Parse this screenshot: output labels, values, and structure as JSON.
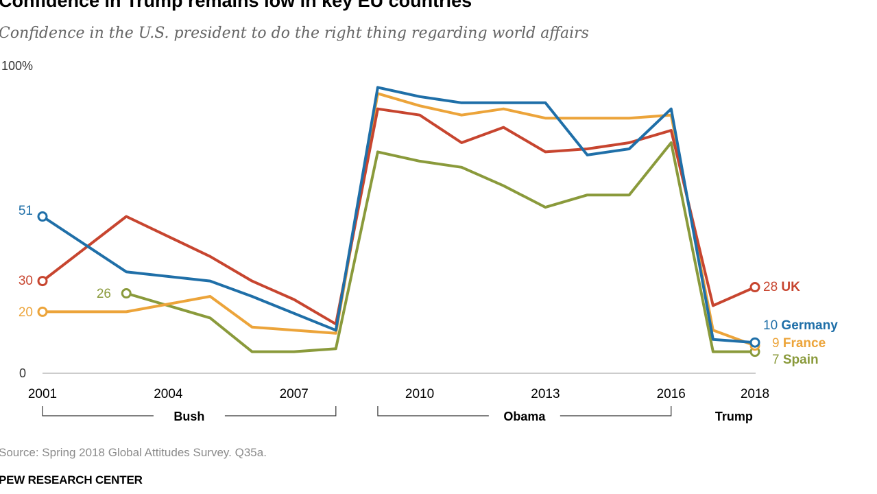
{
  "title": "Confidence in Trump remains low in key EU countries",
  "subtitle": "Confidence in the U.S. president to do the right thing regarding world affairs",
  "source": "Source: Spring 2018 Global Attitudes Survey. Q35a.",
  "org": "PEW RESEARCH CENTER",
  "chart_data": {
    "type": "line",
    "title": "Confidence in Trump remains low in key EU countries",
    "subtitle": "Confidence in the U.S. president to do the right thing regarding world affairs",
    "xlabel": "",
    "ylabel": "",
    "xlim": [
      2001,
      2018
    ],
    "ylim": [
      0,
      100
    ],
    "grid": false,
    "legend": "direct labels at line ends",
    "x_ticks": [
      "2001",
      "2004",
      "2007",
      "2010",
      "2013",
      "2016",
      "2018"
    ],
    "y_ticks": [
      {
        "value": 100,
        "label": "100%"
      },
      {
        "value": 0,
        "label": "0"
      }
    ],
    "eras": [
      {
        "label": "Bush",
        "start": 2001,
        "end": 2008
      },
      {
        "label": "Obama",
        "start": 2009,
        "end": 2016
      },
      {
        "label": "Trump",
        "start": 2017,
        "end": 2018
      }
    ],
    "series": [
      {
        "name": "Spain",
        "color": "#8a9a3b",
        "points": [
          [
            2003,
            26
          ],
          [
            2005,
            18
          ],
          [
            2006,
            7
          ],
          [
            2007,
            7
          ],
          [
            2008,
            8
          ],
          [
            2009,
            72
          ],
          [
            2010,
            69
          ],
          [
            2011,
            67
          ],
          [
            2012,
            61
          ],
          [
            2013,
            54
          ],
          [
            2014,
            58
          ],
          [
            2015,
            58
          ],
          [
            2016,
            75
          ],
          [
            2017,
            7
          ],
          [
            2018,
            7
          ]
        ],
        "start_label": "26",
        "end_label": "7"
      },
      {
        "name": "France",
        "color": "#eca43a",
        "points": [
          [
            2001,
            20
          ],
          [
            2003,
            20
          ],
          [
            2005,
            25
          ],
          [
            2006,
            15
          ],
          [
            2007,
            14
          ],
          [
            2008,
            13
          ],
          [
            2009,
            91
          ],
          [
            2010,
            87
          ],
          [
            2011,
            84
          ],
          [
            2012,
            86
          ],
          [
            2013,
            83
          ],
          [
            2014,
            83
          ],
          [
            2015,
            83
          ],
          [
            2016,
            84
          ],
          [
            2017,
            14
          ],
          [
            2018,
            9
          ]
        ],
        "start_label": "20",
        "end_label": "9"
      },
      {
        "name": "UK",
        "color": "#c7452f",
        "points": [
          [
            2001,
            30
          ],
          [
            2003,
            51
          ],
          [
            2005,
            38
          ],
          [
            2006,
            30
          ],
          [
            2007,
            24
          ],
          [
            2008,
            16
          ],
          [
            2009,
            86
          ],
          [
            2010,
            84
          ],
          [
            2011,
            75
          ],
          [
            2012,
            80
          ],
          [
            2013,
            72
          ],
          [
            2014,
            73
          ],
          [
            2015,
            75
          ],
          [
            2016,
            79
          ],
          [
            2017,
            22
          ],
          [
            2018,
            28
          ]
        ],
        "start_label": "30",
        "end_label": "28"
      },
      {
        "name": "Germany",
        "color": "#1f6fa8",
        "points": [
          [
            2001,
            51
          ],
          [
            2003,
            33
          ],
          [
            2005,
            30
          ],
          [
            2006,
            25
          ],
          [
            2008,
            14
          ],
          [
            2009,
            93
          ],
          [
            2010,
            90
          ],
          [
            2011,
            88
          ],
          [
            2012,
            88
          ],
          [
            2013,
            88
          ],
          [
            2014,
            71
          ],
          [
            2015,
            73
          ],
          [
            2016,
            86
          ],
          [
            2017,
            11
          ],
          [
            2018,
            10
          ]
        ],
        "start_label": "51",
        "end_label": "10"
      }
    ]
  }
}
